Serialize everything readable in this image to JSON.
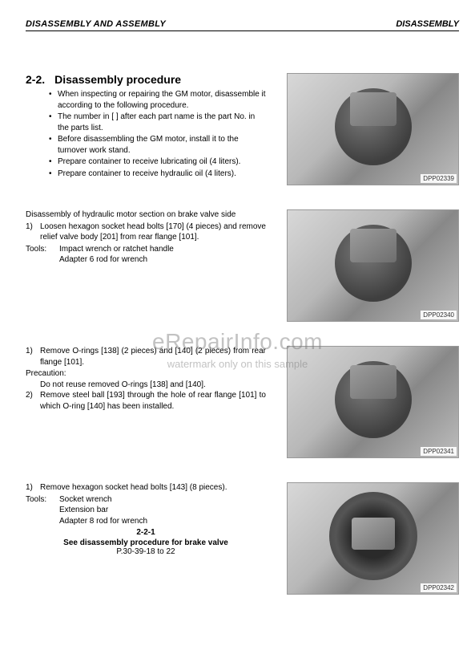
{
  "header": {
    "left": "DISASSEMBLY AND ASSEMBLY",
    "right": "DISASSEMBLY"
  },
  "sect1": {
    "num": "2-2.",
    "title": "Disassembly procedure",
    "bullets": [
      "When inspecting or repairing the GM motor, disassemble it according to the following procedure.",
      "The number in [ ] after each part name is the part No. in the parts list.",
      "Before disassembling the GM motor, install it to the turnover work stand.",
      "Prepare container to receive lubricating oil (4 liters).",
      "Prepare container to receive hydraulic oil (4 liters)."
    ],
    "photo_tag": "DPP02339"
  },
  "sect2": {
    "heading": "Disassembly of hydraulic motor section on brake valve side",
    "item_n": "1)",
    "item_txt": "Loosen hexagon socket head bolts [170] (4 pieces) and remove relief valve body [201] from rear flange [101].",
    "tools_label": "Tools:",
    "tools_lines": [
      "Impact wrench or ratchet handle",
      "Adapter 6 rod for wrench"
    ],
    "photo_tag": "DPP02340"
  },
  "sect3": {
    "item1_n": "1)",
    "item1_txt": "Remove O-rings [138] (2 pieces) and [140] (2 pieces) from rear flange [101].",
    "prec_label": "Precaution:",
    "prec_body": "Do not reuse removed O-rings [138] and [140].",
    "item2_n": "2)",
    "item2_txt": "Remove steel ball [193] through the hole of rear flange [101] to which O-ring [140] has been installed.",
    "photo_tag": "DPP02341"
  },
  "sect4": {
    "item_n": "1)",
    "item_txt": "Remove hexagon socket head bolts [143] (8 pieces).",
    "tools_label": "Tools:",
    "tools_lines": [
      "Socket wrench",
      "Extension bar",
      "Adapter 8 rod for wrench"
    ],
    "ref_code": "2-2-1",
    "ref_bold": "See disassembly procedure for brake valve",
    "ref_pages": "P.30-39-18 to 22",
    "photo_tag": "DPP02342"
  },
  "watermark": {
    "main": "eRepairInfo.com",
    "sub": "watermark only on this sample"
  }
}
